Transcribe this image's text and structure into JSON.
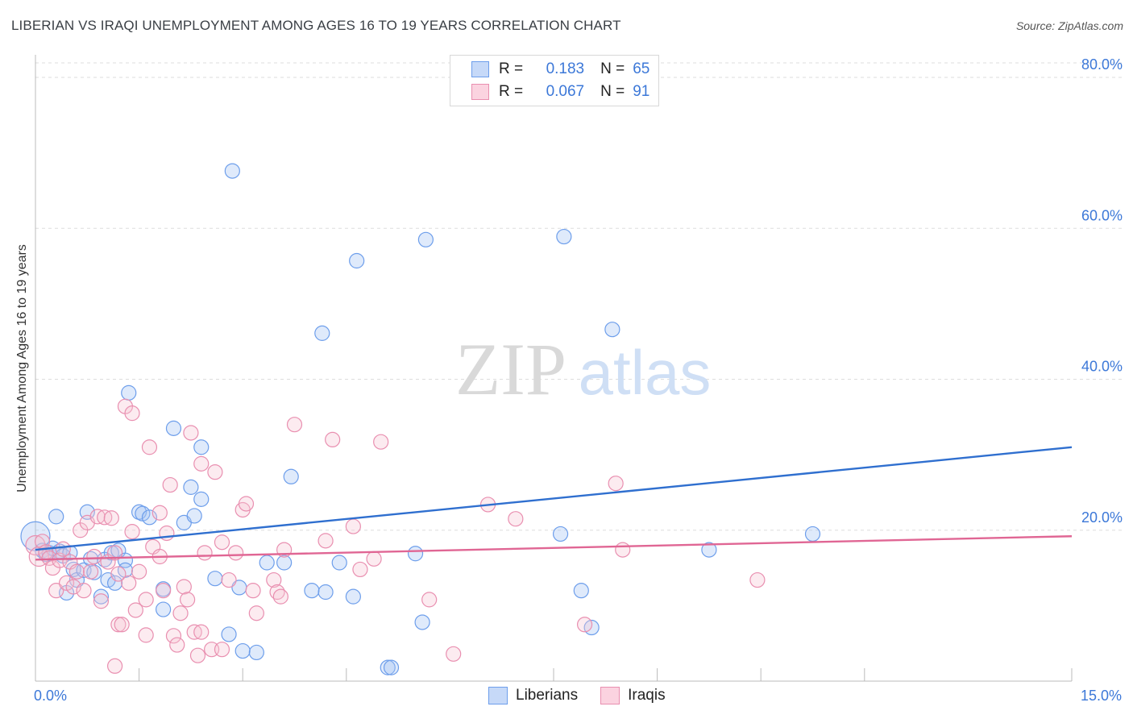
{
  "header": {
    "title": "LIBERIAN VS IRAQI UNEMPLOYMENT AMONG AGES 16 TO 19 YEARS CORRELATION CHART",
    "source": "Source: ZipAtlas.com"
  },
  "watermark": {
    "zip": "ZIP",
    "atlas": "atlas"
  },
  "legend": {
    "rows": [
      {
        "r_label": "R =",
        "r_value": "0.183",
        "n_label": "N =",
        "n_value": "65",
        "color": "#a4c2f4",
        "border": "#6d9eeb"
      },
      {
        "r_label": "R =",
        "r_value": "0.067",
        "n_label": "N =",
        "n_value": "91",
        "color": "#f7c5d5",
        "border": "#e98fb0"
      }
    ]
  },
  "bottom_legend": {
    "liberians": "Liberians",
    "iraqis": "Iraqis"
  },
  "chart_data": {
    "type": "scatter",
    "title": "LIBERIAN VS IRAQI UNEMPLOYMENT AMONG AGES 16 TO 19 YEARS CORRELATION CHART",
    "xlabel": "",
    "ylabel": "Unemployment Among Ages 16 to 19 years",
    "xlim": [
      0,
      15
    ],
    "ylim": [
      0,
      80
    ],
    "x_tick_labels": [
      {
        "value": 0,
        "label": "0.0%"
      },
      {
        "value": 15,
        "label": "15.0%"
      }
    ],
    "x_minor_ticks": [
      1.5,
      3.0,
      4.5,
      7.5,
      9.0,
      10.5,
      12.0,
      15.0
    ],
    "y_ticks": [
      {
        "value": 20,
        "label": "20.0%"
      },
      {
        "value": 40,
        "label": "40.0%"
      },
      {
        "value": 60,
        "label": "60.0%"
      },
      {
        "value": 80,
        "label": "80.0%"
      }
    ],
    "grid": true,
    "series": [
      {
        "name": "Liberians",
        "color": "#6d9eeb",
        "fill": "rgba(164,194,244,0.35)",
        "trend": {
          "x0": 0,
          "y0": 17.4,
          "x1": 15,
          "y1": 31.0,
          "color": "#2f6fcf"
        },
        "points": [
          [
            0.0,
            19.2,
            18
          ],
          [
            0.1,
            17.3,
            9
          ],
          [
            0.15,
            16.8,
            9
          ],
          [
            0.2,
            17.0,
            9
          ],
          [
            0.25,
            17.6,
            9
          ],
          [
            0.3,
            21.8,
            9
          ],
          [
            0.35,
            17.2,
            9
          ],
          [
            0.4,
            16.6,
            9
          ],
          [
            0.45,
            11.7,
            9
          ],
          [
            0.5,
            17.0,
            9
          ],
          [
            0.55,
            14.8,
            9
          ],
          [
            0.6,
            13.4,
            9
          ],
          [
            0.7,
            14.7,
            9
          ],
          [
            0.75,
            22.4,
            9
          ],
          [
            0.8,
            16.2,
            9
          ],
          [
            0.85,
            14.4,
            9
          ],
          [
            0.95,
            11.2,
            9
          ],
          [
            1.0,
            16.1,
            9
          ],
          [
            1.05,
            13.4,
            9
          ],
          [
            1.1,
            17.0,
            9
          ],
          [
            1.15,
            13.0,
            9
          ],
          [
            1.2,
            17.3,
            9
          ],
          [
            1.3,
            16.0,
            9
          ],
          [
            1.3,
            14.7,
            9
          ],
          [
            1.35,
            38.2,
            9
          ],
          [
            1.5,
            22.4,
            9
          ],
          [
            1.55,
            22.2,
            9
          ],
          [
            1.65,
            21.7,
            9
          ],
          [
            1.85,
            12.2,
            9
          ],
          [
            1.85,
            9.5,
            9
          ],
          [
            2.0,
            33.5,
            9
          ],
          [
            2.15,
            21.0,
            9
          ],
          [
            2.25,
            25.7,
            9
          ],
          [
            2.3,
            21.9,
            9
          ],
          [
            2.4,
            24.1,
            9
          ],
          [
            2.4,
            31.0,
            9
          ],
          [
            2.6,
            13.6,
            9
          ],
          [
            2.8,
            6.2,
            9
          ],
          [
            2.85,
            67.6,
            9
          ],
          [
            2.95,
            12.4,
            9
          ],
          [
            3.0,
            4.0,
            9
          ],
          [
            3.2,
            3.8,
            9
          ],
          [
            3.35,
            15.7,
            9
          ],
          [
            3.6,
            15.7,
            9
          ],
          [
            3.7,
            27.1,
            9
          ],
          [
            4.0,
            12.0,
            9
          ],
          [
            4.15,
            46.1,
            9
          ],
          [
            4.2,
            11.8,
            9
          ],
          [
            4.4,
            15.7,
            9
          ],
          [
            4.6,
            11.2,
            9
          ],
          [
            4.65,
            55.7,
            9
          ],
          [
            5.1,
            1.8,
            9
          ],
          [
            5.15,
            1.8,
            9
          ],
          [
            5.5,
            16.9,
            9
          ],
          [
            5.6,
            7.8,
            9
          ],
          [
            5.65,
            58.5,
            9
          ],
          [
            7.6,
            19.5,
            9
          ],
          [
            7.65,
            58.9,
            9
          ],
          [
            7.9,
            12.0,
            9
          ],
          [
            8.05,
            7.1,
            9
          ],
          [
            8.35,
            46.6,
            9
          ],
          [
            9.75,
            17.4,
            9
          ],
          [
            11.25,
            19.5,
            9
          ]
        ]
      },
      {
        "name": "Iraqis",
        "color": "#e98fb0",
        "fill": "rgba(247,197,213,0.35)",
        "trend": {
          "x0": 0,
          "y0": 16.1,
          "x1": 15,
          "y1": 19.2,
          "color": "#e06694"
        },
        "points": [
          [
            0.0,
            18.0,
            12
          ],
          [
            0.05,
            16.5,
            12
          ],
          [
            0.1,
            18.5,
            9
          ],
          [
            0.15,
            17.1,
            9
          ],
          [
            0.2,
            16.3,
            9
          ],
          [
            0.25,
            15.0,
            9
          ],
          [
            0.3,
            12.0,
            9
          ],
          [
            0.35,
            16.0,
            9
          ],
          [
            0.4,
            17.5,
            9
          ],
          [
            0.45,
            13.0,
            9
          ],
          [
            0.5,
            15.8,
            9
          ],
          [
            0.55,
            12.5,
            9
          ],
          [
            0.6,
            14.5,
            9
          ],
          [
            0.65,
            20.0,
            9
          ],
          [
            0.7,
            12.0,
            9
          ],
          [
            0.75,
            21.0,
            9
          ],
          [
            0.8,
            14.5,
            9
          ],
          [
            0.85,
            16.5,
            9
          ],
          [
            0.9,
            21.8,
            9
          ],
          [
            0.95,
            10.6,
            9
          ],
          [
            1.0,
            21.7,
            9
          ],
          [
            1.05,
            15.8,
            9
          ],
          [
            1.1,
            21.6,
            9
          ],
          [
            1.15,
            17.0,
            9
          ],
          [
            1.2,
            14.2,
            9
          ],
          [
            1.15,
            2.0,
            9
          ],
          [
            1.2,
            7.5,
            9
          ],
          [
            1.25,
            7.5,
            9
          ],
          [
            1.3,
            36.4,
            9
          ],
          [
            1.35,
            13.0,
            9
          ],
          [
            1.4,
            35.5,
            9
          ],
          [
            1.4,
            19.8,
            9
          ],
          [
            1.45,
            9.4,
            9
          ],
          [
            1.5,
            14.5,
            9
          ],
          [
            1.6,
            6.1,
            9
          ],
          [
            1.6,
            10.8,
            9
          ],
          [
            1.65,
            31.0,
            9
          ],
          [
            1.7,
            17.8,
            9
          ],
          [
            1.8,
            22.3,
            9
          ],
          [
            1.8,
            16.5,
            9
          ],
          [
            1.85,
            12.0,
            9
          ],
          [
            1.9,
            19.6,
            9
          ],
          [
            1.95,
            26.0,
            9
          ],
          [
            2.0,
            6.0,
            9
          ],
          [
            2.05,
            4.8,
            9
          ],
          [
            2.1,
            9.0,
            9
          ],
          [
            2.15,
            12.5,
            9
          ],
          [
            2.2,
            10.8,
            9
          ],
          [
            2.25,
            32.9,
            9
          ],
          [
            2.3,
            6.5,
            9
          ],
          [
            2.35,
            3.4,
            9
          ],
          [
            2.4,
            6.5,
            9
          ],
          [
            2.4,
            28.8,
            9
          ],
          [
            2.45,
            17.0,
            9
          ],
          [
            2.55,
            4.2,
            9
          ],
          [
            2.6,
            27.7,
            9
          ],
          [
            2.7,
            4.2,
            9
          ],
          [
            2.7,
            18.4,
            9
          ],
          [
            2.8,
            13.4,
            9
          ],
          [
            2.9,
            17.0,
            9
          ],
          [
            3.0,
            22.7,
            9
          ],
          [
            3.05,
            23.5,
            9
          ],
          [
            3.15,
            12.0,
            9
          ],
          [
            3.2,
            9.0,
            9
          ],
          [
            3.45,
            13.4,
            9
          ],
          [
            3.5,
            11.8,
            9
          ],
          [
            3.55,
            11.2,
            9
          ],
          [
            3.6,
            17.4,
            9
          ],
          [
            3.75,
            34.0,
            9
          ],
          [
            4.2,
            18.6,
            9
          ],
          [
            4.3,
            32.0,
            9
          ],
          [
            4.6,
            20.5,
            9
          ],
          [
            4.7,
            14.8,
            9
          ],
          [
            4.9,
            16.2,
            9
          ],
          [
            5.0,
            31.7,
            9
          ],
          [
            5.7,
            10.8,
            9
          ],
          [
            6.05,
            3.6,
            9
          ],
          [
            6.55,
            23.4,
            9
          ],
          [
            6.95,
            21.5,
            9
          ],
          [
            7.95,
            7.5,
            9
          ],
          [
            8.4,
            26.2,
            9
          ],
          [
            8.5,
            17.4,
            9
          ],
          [
            10.45,
            13.4,
            9
          ]
        ]
      }
    ]
  }
}
